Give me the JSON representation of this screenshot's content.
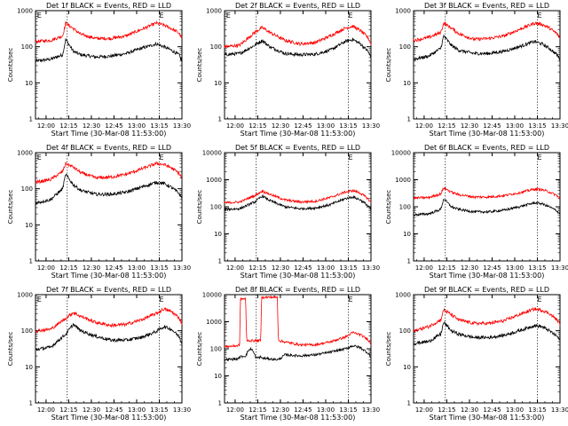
{
  "chart_data": [
    {
      "type": "line",
      "title": "Det 1f BLACK = Events, RED = LLD",
      "xlabel": "Start Time (30-Mar-08 11:53:00)",
      "ylabel": "Counts/sec",
      "yscale": "log",
      "ylim": [
        1,
        1000
      ],
      "xtick_labels": [
        "12:00",
        "12:15",
        "12:30",
        "12:45",
        "13:00",
        "13:15",
        "13:30"
      ],
      "ytick_labels": [
        "1",
        "10",
        "100",
        "1000"
      ],
      "marker_labels": [
        "E",
        "E"
      ],
      "series": [
        {
          "color": "#000000",
          "x": [
            0,
            10,
            18,
            20,
            25,
            30,
            40,
            50,
            60,
            70,
            80,
            85,
            90,
            95,
            97
          ],
          "y": [
            40,
            45,
            60,
            160,
            75,
            60,
            52,
            55,
            65,
            90,
            120,
            100,
            80,
            60,
            40
          ]
        },
        {
          "color": "#ff0000",
          "x": [
            0,
            10,
            18,
            20,
            25,
            30,
            40,
            50,
            60,
            70,
            80,
            85,
            90,
            95,
            97
          ],
          "y": [
            140,
            150,
            200,
            450,
            320,
            220,
            170,
            170,
            200,
            300,
            450,
            400,
            320,
            240,
            170
          ]
        }
      ]
    },
    {
      "type": "line",
      "title": "Det 2f BLACK = Events, RED = LLD",
      "xlabel": "Start Time (30-Mar-08 11:53:00)",
      "ylabel": "Counts/sec",
      "yscale": "log",
      "ylim": [
        1,
        1000
      ],
      "xtick_labels": [
        "12:00",
        "12:15",
        "12:30",
        "12:45",
        "13:00",
        "13:15",
        "13:30"
      ],
      "ytick_labels": [
        "1",
        "10",
        "100",
        "1000"
      ],
      "marker_labels": [
        "E",
        "E"
      ],
      "series": [
        {
          "color": "#000000",
          "x": [
            0,
            10,
            20,
            25,
            30,
            40,
            50,
            60,
            70,
            80,
            85,
            90,
            95,
            97
          ],
          "y": [
            60,
            65,
            110,
            150,
            100,
            65,
            60,
            62,
            80,
            140,
            160,
            120,
            75,
            50
          ]
        },
        {
          "color": "#ff0000",
          "x": [
            0,
            10,
            20,
            25,
            30,
            40,
            50,
            60,
            70,
            80,
            85,
            90,
            95,
            97
          ],
          "y": [
            100,
            110,
            250,
            340,
            250,
            150,
            120,
            130,
            200,
            330,
            370,
            280,
            180,
            120
          ]
        }
      ]
    },
    {
      "type": "line",
      "title": "Det 3f BLACK = Events, RED = LLD",
      "xlabel": "Start Time (30-Mar-08 11:53:00)",
      "ylabel": "Counts/sec",
      "yscale": "log",
      "ylim": [
        1,
        1000
      ],
      "xtick_labels": [
        "12:00",
        "12:15",
        "12:30",
        "12:45",
        "13:00",
        "13:15",
        "13:30"
      ],
      "ytick_labels": [
        "1",
        "10",
        "100",
        "1000"
      ],
      "marker_labels": [
        "E"
      ],
      "series": [
        {
          "color": "#000000",
          "x": [
            0,
            10,
            18,
            20,
            25,
            30,
            40,
            50,
            60,
            70,
            80,
            85,
            90,
            95,
            97
          ],
          "y": [
            45,
            55,
            90,
            200,
            110,
            80,
            65,
            65,
            75,
            100,
            140,
            120,
            90,
            60,
            45
          ]
        },
        {
          "color": "#ff0000",
          "x": [
            0,
            10,
            18,
            20,
            25,
            30,
            40,
            50,
            60,
            70,
            80,
            85,
            90,
            95,
            97
          ],
          "y": [
            150,
            180,
            250,
            450,
            330,
            230,
            160,
            170,
            200,
            300,
            450,
            420,
            330,
            230,
            170
          ]
        }
      ]
    },
    {
      "type": "line",
      "title": "Det 4f BLACK = Events, RED = LLD",
      "xlabel": "Start Time (30-Mar-08 11:53:00)",
      "ylabel": "Counts/sec",
      "yscale": "log",
      "ylim": [
        1,
        1000
      ],
      "xtick_labels": [
        "12:00",
        "12:15",
        "12:30",
        "12:45",
        "13:00",
        "13:15",
        "13:30"
      ],
      "ytick_labels": [
        "1",
        "10",
        "100",
        "1000"
      ],
      "marker_labels": [
        "E",
        "E"
      ],
      "series": [
        {
          "color": "#000000",
          "x": [
            0,
            10,
            18,
            20,
            25,
            30,
            40,
            50,
            60,
            70,
            80,
            85,
            90,
            95,
            97
          ],
          "y": [
            40,
            50,
            100,
            250,
            130,
            90,
            70,
            70,
            80,
            110,
            150,
            140,
            110,
            75,
            55
          ]
        },
        {
          "color": "#ff0000",
          "x": [
            0,
            10,
            18,
            20,
            25,
            30,
            40,
            50,
            60,
            70,
            80,
            85,
            90,
            95,
            97
          ],
          "y": [
            150,
            180,
            300,
            500,
            400,
            280,
            200,
            210,
            250,
            350,
            500,
            470,
            380,
            270,
            200
          ]
        }
      ]
    },
    {
      "type": "line",
      "title": "Det 5f BLACK = Events, RED = LLD",
      "xlabel": "Start Time (30-Mar-08 11:53:00)",
      "ylabel": "Counts/sec",
      "yscale": "log",
      "ylim": [
        1,
        10000
      ],
      "xtick_labels": [
        "12:00",
        "12:15",
        "12:30",
        "12:45",
        "13:00",
        "13:15",
        "13:30"
      ],
      "ytick_labels": [
        "1",
        "10",
        "100",
        "1000",
        "10000"
      ],
      "marker_labels": [
        "E"
      ],
      "series": [
        {
          "color": "#000000",
          "x": [
            0,
            10,
            20,
            25,
            30,
            40,
            50,
            60,
            70,
            80,
            85,
            90,
            95,
            97
          ],
          "y": [
            80,
            85,
            150,
            250,
            170,
            100,
            85,
            90,
            120,
            200,
            230,
            180,
            110,
            80
          ]
        },
        {
          "color": "#ff0000",
          "x": [
            0,
            10,
            20,
            25,
            30,
            40,
            50,
            60,
            70,
            80,
            85,
            90,
            95,
            97
          ],
          "y": [
            140,
            150,
            260,
            380,
            290,
            180,
            150,
            160,
            220,
            350,
            400,
            320,
            200,
            140
          ]
        }
      ]
    },
    {
      "type": "line",
      "title": "Det 6f BLACK = Events, RED = LLD",
      "xlabel": "Start Time (30-Mar-08 11:53:00)",
      "ylabel": "Counts/sec",
      "yscale": "log",
      "ylim": [
        1,
        10000
      ],
      "xtick_labels": [
        "12:00",
        "12:15",
        "12:30",
        "12:45",
        "13:00",
        "13:15",
        "13:30"
      ],
      "ytick_labels": [
        "1",
        "10",
        "100",
        "1000",
        "10000"
      ],
      "marker_labels": [
        "E"
      ],
      "series": [
        {
          "color": "#000000",
          "x": [
            0,
            10,
            18,
            20,
            25,
            30,
            40,
            50,
            60,
            70,
            80,
            85,
            90,
            95,
            97
          ],
          "y": [
            50,
            55,
            80,
            200,
            100,
            80,
            65,
            65,
            75,
            100,
            140,
            130,
            100,
            70,
            55
          ]
        },
        {
          "color": "#ff0000",
          "x": [
            0,
            10,
            18,
            20,
            25,
            30,
            40,
            50,
            60,
            70,
            80,
            85,
            90,
            95,
            97
          ],
          "y": [
            210,
            220,
            300,
            500,
            350,
            280,
            230,
            230,
            260,
            330,
            450,
            430,
            350,
            260,
            200
          ]
        }
      ]
    },
    {
      "type": "line",
      "title": "Det 7f BLACK = Events, RED = LLD",
      "xlabel": "Start Time (30-Mar-08 11:53:00)",
      "ylabel": "Counts/sec",
      "yscale": "log",
      "ylim": [
        1,
        1000
      ],
      "xtick_labels": [
        "12:00",
        "12:15",
        "12:30",
        "12:45",
        "13:00",
        "13:15",
        "13:30"
      ],
      "ytick_labels": [
        "1",
        "10",
        "100",
        "1000"
      ],
      "marker_labels": [
        "E",
        "E"
      ],
      "series": [
        {
          "color": "#000000",
          "x": [
            0,
            10,
            20,
            25,
            30,
            40,
            50,
            60,
            70,
            80,
            85,
            90,
            95,
            97
          ],
          "y": [
            30,
            35,
            80,
            150,
            100,
            70,
            55,
            55,
            65,
            95,
            130,
            110,
            70,
            45
          ]
        },
        {
          "color": "#ff0000",
          "x": [
            0,
            10,
            20,
            25,
            30,
            40,
            50,
            60,
            70,
            80,
            85,
            90,
            95,
            97
          ],
          "y": [
            100,
            110,
            220,
            320,
            250,
            170,
            140,
            150,
            200,
            300,
            400,
            340,
            230,
            160
          ]
        }
      ]
    },
    {
      "type": "line",
      "title": "Det 8f BLACK = Events, RED = LLD",
      "xlabel": "Start Time (30-Mar-08 11:53:00)",
      "ylabel": "Counts/sec",
      "yscale": "log",
      "ylim": [
        1,
        10000
      ],
      "xtick_labels": [
        "12:00",
        "12:15",
        "12:30",
        "12:45",
        "13:00",
        "13:15",
        "13:30"
      ],
      "ytick_labels": [
        "1",
        "10",
        "100",
        "1000",
        "10000"
      ],
      "marker_labels": [
        "E"
      ],
      "series": [
        {
          "color": "#000000",
          "x": [
            0,
            9,
            10,
            14,
            16,
            18,
            20,
            21,
            24,
            25,
            35,
            36,
            40,
            50,
            60,
            70,
            80,
            85,
            90,
            95,
            97
          ],
          "y": [
            40,
            42,
            50,
            55,
            90,
            100,
            60,
            45,
            50,
            45,
            40,
            40,
            60,
            55,
            60,
            75,
            100,
            130,
            110,
            70,
            50
          ]
        },
        {
          "color": "#ff0000",
          "x": [
            0,
            9,
            10,
            10.5,
            14,
            14.5,
            15,
            20,
            21,
            24,
            24.5,
            35,
            35.5,
            36,
            40,
            50,
            60,
            70,
            80,
            85,
            90,
            95,
            97
          ],
          "y": [
            120,
            130,
            150,
            7000,
            7000,
            300,
            200,
            200,
            200,
            200,
            8000,
            8000,
            350,
            200,
            180,
            140,
            140,
            180,
            270,
            400,
            330,
            220,
            150
          ]
        }
      ]
    },
    {
      "type": "line",
      "title": "Det 9f BLACK = Events, RED = LLD",
      "xlabel": "Start Time (30-Mar-08 11:53:00)",
      "ylabel": "Counts/sec",
      "yscale": "log",
      "ylim": [
        1,
        1000
      ],
      "xtick_labels": [
        "12:00",
        "12:15",
        "12:30",
        "12:45",
        "13:00",
        "13:15",
        "13:30"
      ],
      "ytick_labels": [
        "1",
        "10",
        "100",
        "1000"
      ],
      "marker_labels": [
        "E"
      ],
      "series": [
        {
          "color": "#000000",
          "x": [
            0,
            10,
            18,
            20,
            25,
            30,
            40,
            50,
            60,
            70,
            80,
            85,
            90,
            95,
            97
          ],
          "y": [
            45,
            50,
            80,
            170,
            100,
            80,
            65,
            65,
            75,
            100,
            140,
            130,
            100,
            70,
            55
          ]
        },
        {
          "color": "#ff0000",
          "x": [
            0,
            10,
            18,
            20,
            25,
            30,
            40,
            50,
            60,
            70,
            80,
            85,
            90,
            95,
            97
          ],
          "y": [
            100,
            130,
            200,
            380,
            280,
            200,
            160,
            160,
            190,
            280,
            400,
            370,
            300,
            200,
            150
          ]
        }
      ]
    }
  ]
}
